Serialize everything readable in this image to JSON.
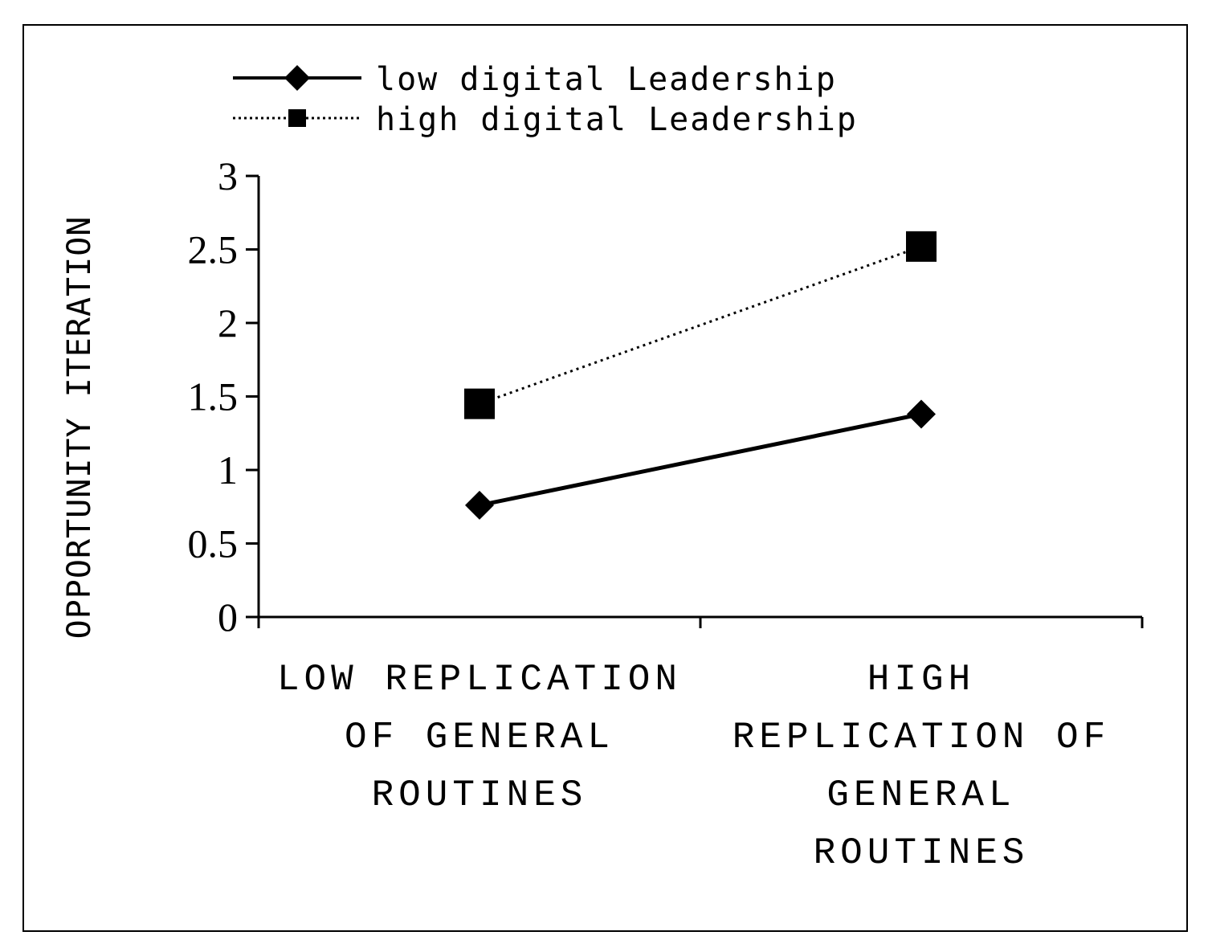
{
  "chart_data": {
    "type": "line",
    "categories": [
      [
        "LOW REPLICATION",
        "OF GENERAL",
        "ROUTINES"
      ],
      [
        "HIGH",
        "REPLICATION OF",
        "GENERAL",
        "ROUTINES"
      ]
    ],
    "ylabel": "OPPORTUNITY ITERATION",
    "xlabel": "",
    "ylim": [
      0,
      3
    ],
    "yticks": [
      0,
      0.5,
      1,
      1.5,
      2,
      2.5,
      3
    ],
    "ytick_labels": [
      "0",
      "0.5",
      "1",
      "1.5",
      "2",
      "2.5",
      "3"
    ],
    "grid": false,
    "legend_position": "top-left",
    "series": [
      {
        "name": "low digital Leadership",
        "values": [
          0.76,
          1.38
        ],
        "marker": "diamond",
        "line_style": "solid",
        "color": "#000000"
      },
      {
        "name": "high digital Leadership",
        "values": [
          1.45,
          2.52
        ],
        "marker": "square",
        "line_style": "dotted",
        "color": "#000000"
      }
    ]
  }
}
